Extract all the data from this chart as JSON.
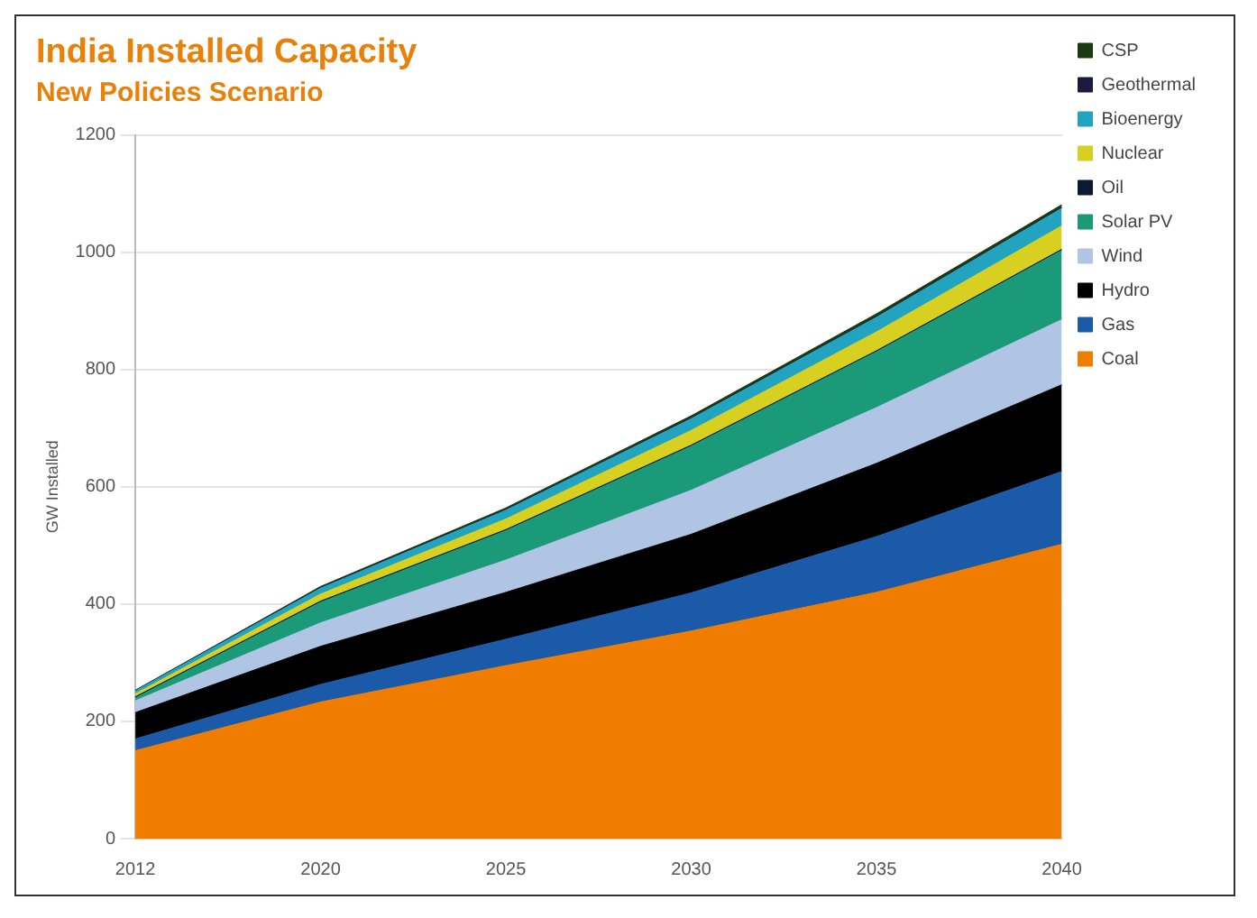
{
  "chart_data": {
    "type": "area",
    "title": "India Installed Capacity",
    "subtitle": "New Policies Scenario",
    "ylabel": "GW Installed",
    "stacked": true,
    "grid": "y",
    "legend": "top right",
    "categories": [
      "2012",
      "2020",
      "2025",
      "2030",
      "2035",
      "2040"
    ],
    "ylim": [
      0,
      1200
    ],
    "yticks": [
      0,
      200,
      400,
      600,
      800,
      1000,
      1200
    ],
    "series": [
      {
        "name": "Coal",
        "color": "#f07d00",
        "values": [
          150,
          233,
          295,
          354,
          420,
          502
        ]
      },
      {
        "name": "Gas",
        "color": "#1a5aa8",
        "values": [
          20,
          30,
          45,
          65,
          95,
          124
        ]
      },
      {
        "name": "Hydro",
        "color": "#000000",
        "values": [
          45,
          65,
          80,
          100,
          125,
          148
        ]
      },
      {
        "name": "Wind",
        "color": "#b0c4e4",
        "values": [
          20,
          40,
          55,
          75,
          95,
          111
        ]
      },
      {
        "name": "Solar PV",
        "color": "#1a9a78",
        "values": [
          5,
          35,
          50,
          75,
          95,
          118
        ]
      },
      {
        "name": "Oil",
        "color": "#0a1a30",
        "values": [
          2,
          2,
          2,
          2,
          2,
          2
        ]
      },
      {
        "name": "Nuclear",
        "color": "#d8d020",
        "values": [
          5,
          12,
          18,
          25,
          32,
          40
        ]
      },
      {
        "name": "Bioenergy",
        "color": "#22a3c0",
        "values": [
          5,
          10,
          15,
          20,
          25,
          30
        ]
      },
      {
        "name": "Geothermal",
        "color": "#1d1a40",
        "values": [
          1,
          1,
          1,
          1,
          1,
          1
        ]
      },
      {
        "name": "CSP",
        "color": "#1a3a10",
        "values": [
          0,
          2,
          3,
          4,
          5,
          5
        ]
      }
    ]
  }
}
